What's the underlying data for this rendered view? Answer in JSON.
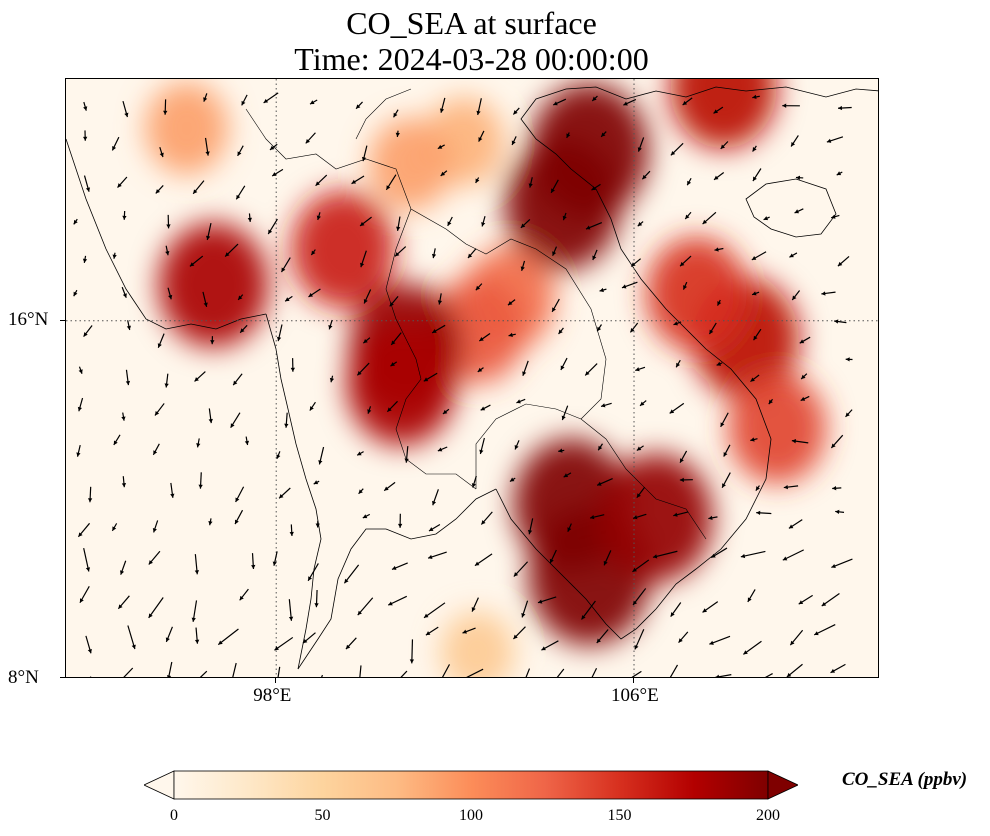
{
  "title": {
    "line1": "CO_SEA at surface",
    "line2": "Time: 2024-03-28 00:00:00"
  },
  "map": {
    "variable": "CO_SEA",
    "level": "surface",
    "time": "2024-03-28 00:00:00",
    "lon_range": [
      93.3,
      111.5
    ],
    "lat_range": [
      8,
      21.4
    ],
    "gridlines": {
      "lon": [
        98,
        106
      ],
      "lat": [
        8,
        16
      ],
      "style": "dotted"
    },
    "x_tick_labels": [
      "98°E",
      "106°E"
    ],
    "y_tick_labels": [
      "8°N",
      "16°N"
    ],
    "colormap": "OrRd",
    "wind_vectors": true,
    "plumes": [
      {
        "lon": 105.0,
        "lat": 19.8,
        "value": 210
      },
      {
        "lon": 104.4,
        "lat": 18.6,
        "value": 200
      },
      {
        "lon": 103.2,
        "lat": 16.5,
        "value": 120
      },
      {
        "lon": 102.5,
        "lat": 15.8,
        "value": 130
      },
      {
        "lon": 100.9,
        "lat": 15.4,
        "value": 190
      },
      {
        "lon": 100.8,
        "lat": 14.6,
        "value": 180
      },
      {
        "lon": 99.5,
        "lat": 17.6,
        "value": 160
      },
      {
        "lon": 96.6,
        "lat": 16.8,
        "value": 180
      },
      {
        "lon": 104.6,
        "lat": 11.9,
        "value": 200
      },
      {
        "lon": 105.0,
        "lat": 10.3,
        "value": 220
      },
      {
        "lon": 106.5,
        "lat": 11.6,
        "value": 190
      },
      {
        "lon": 108.5,
        "lat": 15.6,
        "value": 170
      },
      {
        "lon": 107.4,
        "lat": 16.6,
        "value": 150
      },
      {
        "lon": 109.2,
        "lat": 13.6,
        "value": 140
      },
      {
        "lon": 108.0,
        "lat": 21.2,
        "value": 170
      },
      {
        "lon": 102.2,
        "lat": 20.0,
        "value": 80
      },
      {
        "lon": 101.0,
        "lat": 19.5,
        "value": 90
      },
      {
        "lon": 96.0,
        "lat": 20.3,
        "value": 90
      },
      {
        "lon": 102.5,
        "lat": 8.6,
        "value": 60
      }
    ]
  },
  "colorbar": {
    "label": "CO_SEA (ppbv)",
    "min": 0,
    "max": 200,
    "ticks": [
      "0",
      "50",
      "100",
      "150",
      "200"
    ],
    "extend": "both",
    "colors": [
      "#fff7ec",
      "#fee8c8",
      "#fdd49e",
      "#fdbb84",
      "#fc8d59",
      "#ef6548",
      "#d7301f",
      "#b30000",
      "#7f0000"
    ]
  }
}
